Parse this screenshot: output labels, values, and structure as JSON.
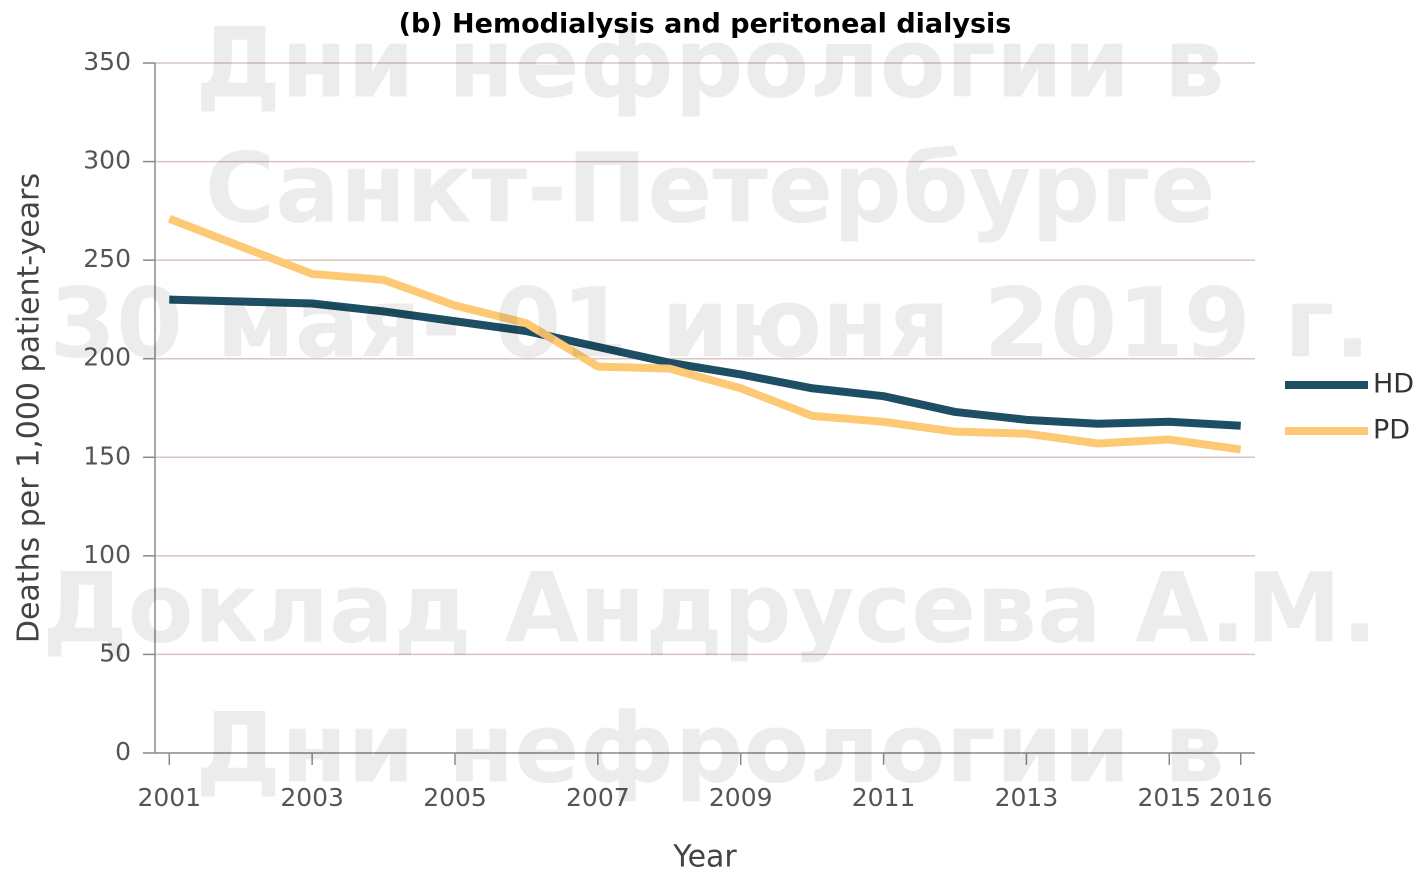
{
  "chart_data": {
    "type": "line",
    "title": "(b) Hemodialysis and peritoneal dialysis",
    "x_label": "Year",
    "y_label": "Deaths per 1,000 patient-years",
    "x": [
      2001,
      2002,
      2003,
      2004,
      2005,
      2006,
      2007,
      2008,
      2009,
      2010,
      2011,
      2012,
      2013,
      2014,
      2015,
      2016
    ],
    "series": [
      {
        "name": "HD",
        "color": "#1d4e63",
        "values": [
          230,
          229,
          228,
          224,
          219,
          214,
          206,
          198,
          192,
          185,
          181,
          173,
          169,
          167,
          168,
          166
        ]
      },
      {
        "name": "PD",
        "color": "#fdc975",
        "values": [
          271,
          257,
          243,
          240,
          227,
          218,
          196,
          195,
          185,
          171,
          168,
          163,
          162,
          157,
          159,
          154
        ]
      }
    ],
    "xlim": [
      2000.8,
      2016.2
    ],
    "xticks": [
      2001,
      2003,
      2005,
      2007,
      2009,
      2011,
      2013,
      2015,
      2016
    ],
    "ylim": [
      0,
      350
    ],
    "yticks": [
      0,
      50,
      100,
      150,
      200,
      250,
      300,
      350
    ],
    "grid": true,
    "legend": "right",
    "watermark": [
      "Дни нефрологии в",
      "Санкт-Петербурге",
      "30 мая- 01 июня 2019 г.",
      "Доклад Андрусева А.М.",
      "Дни нефрологии в"
    ]
  }
}
